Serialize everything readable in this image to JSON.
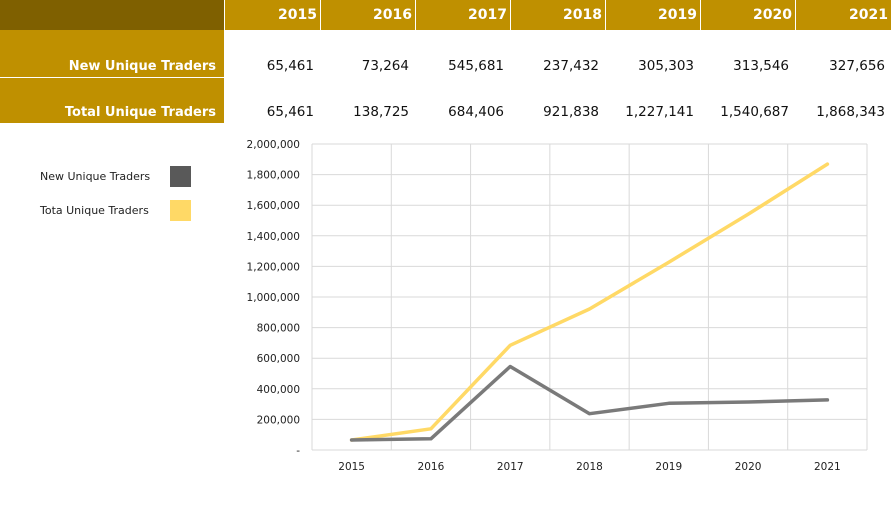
{
  "table": {
    "years": [
      "2015",
      "2016",
      "2017",
      "2018",
      "2019",
      "2020",
      "2021"
    ],
    "rows": [
      {
        "label": "New Unique Traders",
        "values": [
          "65,461",
          "73,264",
          "545,681",
          "237,432",
          "305,303",
          "313,546",
          "327,656"
        ]
      },
      {
        "label": "Total Unique Traders",
        "values": [
          "65,461",
          "138,725",
          "684,406",
          "921,838",
          "1,227,141",
          "1,540,687",
          "1,868,343"
        ]
      }
    ]
  },
  "colors": {
    "header_dark": "#7f6000",
    "header_gold": "#bf9000",
    "new_series": "#7a7a7a",
    "total_series": "#ffd966",
    "grid": "#d9d9d9"
  },
  "legend": {
    "items": [
      {
        "label": "New Unique Traders",
        "color": "#595959"
      },
      {
        "label": "Tota Unique Traders",
        "color": "#ffd966"
      }
    ]
  },
  "chart_data": {
    "type": "line",
    "x": [
      "2015",
      "2016",
      "2017",
      "2018",
      "2019",
      "2020",
      "2021"
    ],
    "series": [
      {
        "name": "New Unique Traders",
        "values": [
          65461,
          73264,
          545681,
          237432,
          305303,
          313546,
          327656
        ]
      },
      {
        "name": "Tota Unique Traders",
        "values": [
          65461,
          138725,
          684406,
          921838,
          1227141,
          1540687,
          1868343
        ]
      }
    ],
    "ylim": [
      0,
      2000000
    ],
    "yticks": [
      0,
      200000,
      400000,
      600000,
      800000,
      1000000,
      1200000,
      1400000,
      1600000,
      1800000,
      2000000
    ],
    "ytick_labels": [
      "-",
      "200,000",
      "400,000",
      "600,000",
      "800,000",
      "1,000,000",
      "1,200,000",
      "1,400,000",
      "1,600,000",
      "1,800,000",
      "2,000,000"
    ],
    "grid": true,
    "legend_position": "left"
  }
}
